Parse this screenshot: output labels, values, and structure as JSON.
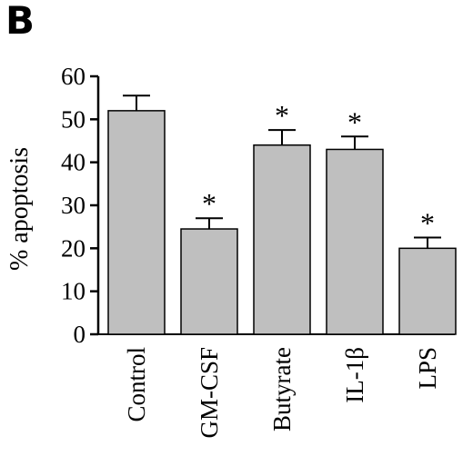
{
  "panel_label": "B",
  "chart_data": {
    "type": "bar",
    "categories": [
      "Control",
      "GM-CSF",
      "Butyrate",
      "IL-1β",
      "LPS"
    ],
    "values": [
      52,
      24.5,
      44,
      43,
      20
    ],
    "error_upper": [
      55.5,
      27,
      47.5,
      46,
      22.5
    ],
    "significance": [
      "",
      "*",
      "*",
      "*",
      "*"
    ],
    "ylabel": "% apoptosis",
    "xlabel": "",
    "title": "",
    "ylim": [
      0,
      60
    ],
    "yticks": [
      0,
      10,
      20,
      30,
      40,
      50,
      60
    ],
    "bar_color": "#bfbfbf",
    "edge_color": "#000000",
    "grid": false,
    "legend": "none"
  }
}
